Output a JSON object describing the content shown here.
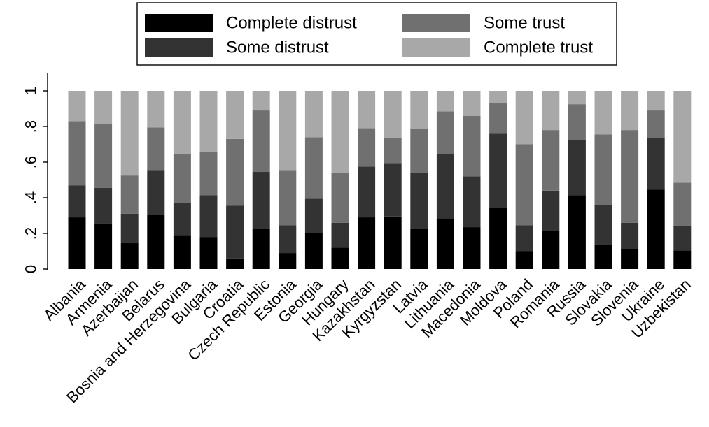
{
  "chart_data": {
    "type": "bar",
    "stacked": true,
    "orientation": "vertical",
    "categories": [
      "Albania",
      "Armenia",
      "Azerbaijan",
      "Belarus",
      "Bosnia and Herzegovina",
      "Bulgaria",
      "Croatia",
      "Czech Republic",
      "Estonia",
      "Georgia",
      "Hungary",
      "Kazakhstan",
      "Kyrgyzstan",
      "Latvia",
      "Lithuania",
      "Macedonia",
      "Moldova",
      "Poland",
      "Romania",
      "Russia",
      "Slovakia",
      "Slovenia",
      "Ukraine",
      "Uzbekistan"
    ],
    "series": [
      {
        "name": "Complete distrust",
        "color": "#000000",
        "values": [
          0.29,
          0.255,
          0.145,
          0.305,
          0.19,
          0.18,
          0.06,
          0.225,
          0.09,
          0.2,
          0.12,
          0.29,
          0.295,
          0.225,
          0.285,
          0.235,
          0.345,
          0.1,
          0.215,
          0.415,
          0.135,
          0.11,
          0.445,
          0.105
        ]
      },
      {
        "name": "Some distrust",
        "color": "#333333",
        "values": [
          0.18,
          0.2,
          0.165,
          0.25,
          0.18,
          0.235,
          0.295,
          0.32,
          0.155,
          0.195,
          0.14,
          0.285,
          0.3,
          0.315,
          0.36,
          0.285,
          0.415,
          0.145,
          0.225,
          0.31,
          0.225,
          0.15,
          0.29,
          0.135
        ]
      },
      {
        "name": "Some trust",
        "color": "#707070",
        "values": [
          0.36,
          0.36,
          0.215,
          0.24,
          0.275,
          0.24,
          0.375,
          0.345,
          0.31,
          0.345,
          0.28,
          0.215,
          0.14,
          0.245,
          0.24,
          0.34,
          0.17,
          0.455,
          0.34,
          0.2,
          0.395,
          0.52,
          0.155,
          0.245
        ]
      },
      {
        "name": "Complete trust",
        "color": "#a8a8a8",
        "values": [
          0.17,
          0.185,
          0.475,
          0.205,
          0.355,
          0.345,
          0.27,
          0.11,
          0.445,
          0.26,
          0.46,
          0.21,
          0.265,
          0.215,
          0.115,
          0.14,
          0.07,
          0.3,
          0.22,
          0.075,
          0.245,
          0.22,
          0.11,
          0.515
        ]
      }
    ],
    "yaxis": {
      "ylim": [
        0,
        1
      ],
      "ticks": [
        0,
        0.2,
        0.4,
        0.6,
        0.8,
        1
      ],
      "tick_labels": [
        "0",
        ".2",
        ".4",
        ".6",
        ".8",
        "1"
      ]
    },
    "title": "",
    "xlabel": "",
    "ylabel": "",
    "grid": false,
    "legend": {
      "placement": "top-center",
      "columns": 2,
      "order": [
        "Complete distrust",
        "Some trust",
        "Some distrust",
        "Complete trust"
      ]
    }
  }
}
